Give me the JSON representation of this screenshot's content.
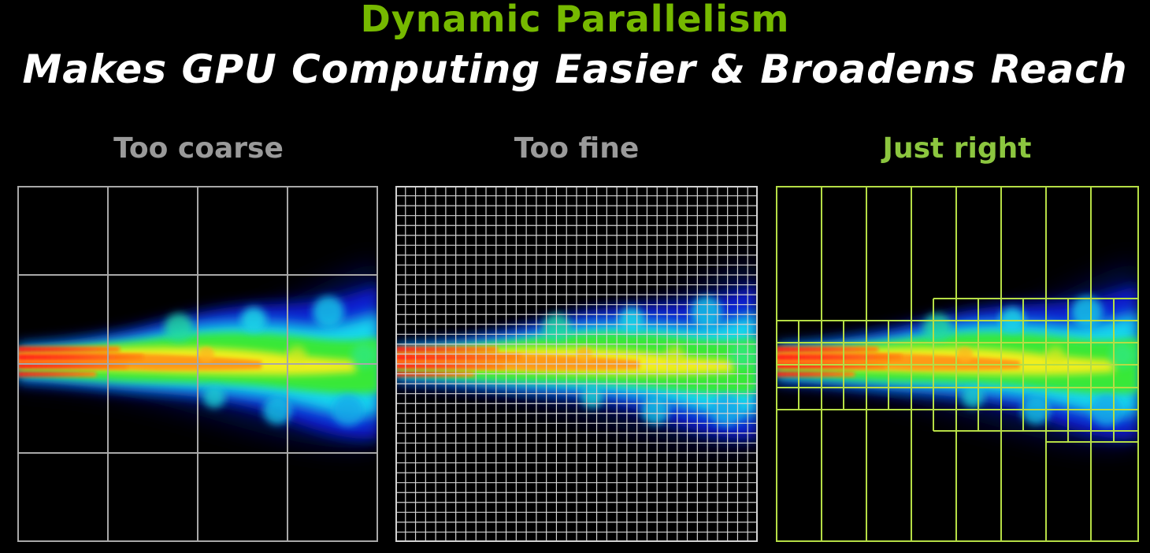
{
  "slide": {
    "title": "Dynamic Parallelism",
    "subtitle": "Makes GPU Computing Easier & Broadens Reach"
  },
  "colors": {
    "background": "#000000",
    "title": "#76b900",
    "subtitle": "#ffffff",
    "label_muted": "#9a9a9a",
    "label_accent": "#8cc63f",
    "grid_gray": "#a8a8a8",
    "grid_light": "#d2d2d2",
    "grid_green": "#b5dd45"
  },
  "panels": [
    {
      "label": "Too coarse",
      "label_color": "label_muted",
      "grid": "uniform coarse",
      "grid_columns": 4,
      "grid_rows": 4,
      "grid_color": "grid_gray"
    },
    {
      "label": "Too fine",
      "label_color": "label_muted",
      "grid": "uniform fine",
      "grid_columns": 36,
      "grid_rows": 36,
      "grid_color": "grid_light"
    },
    {
      "label": "Just right",
      "label_color": "label_accent",
      "grid": "adaptive",
      "grid_columns": 8,
      "grid_color": "grid_green"
    }
  ]
}
